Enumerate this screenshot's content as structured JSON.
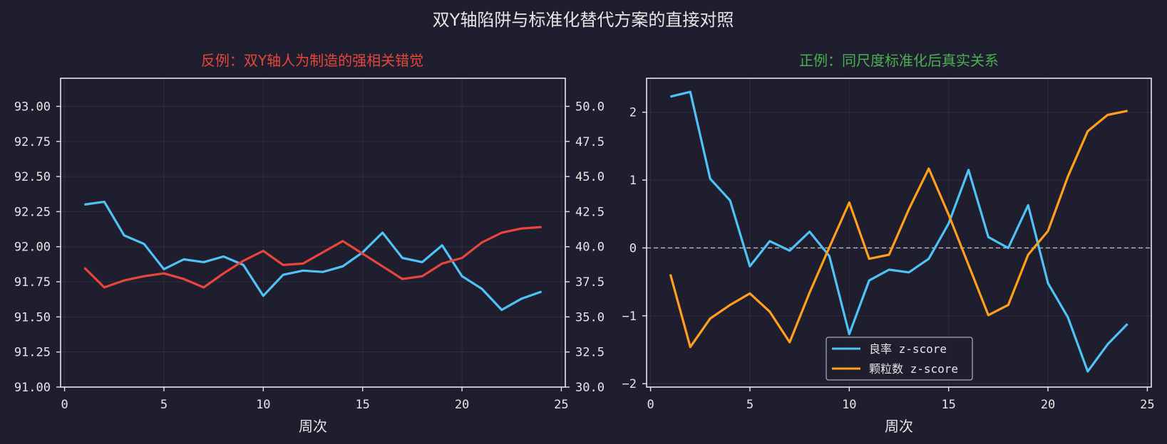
{
  "suptitle": "双Y轴陷阱与标准化替代方案的直接对照",
  "chart_data": [
    {
      "type": "line",
      "title": "反例：双Y轴人为制造的强相关错觉",
      "title_color": "#e8453c",
      "xlabel": "周次",
      "xlim": [
        -0.2,
        25.2
      ],
      "xticks": [
        0,
        5,
        10,
        15,
        20,
        25
      ],
      "x": [
        1,
        2,
        3,
        4,
        5,
        6,
        7,
        8,
        9,
        10,
        11,
        12,
        13,
        14,
        15,
        16,
        17,
        18,
        19,
        20,
        21,
        22,
        23,
        24
      ],
      "ylim_left": [
        91.0,
        93.2
      ],
      "yticks_left": [
        "91.00",
        "91.25",
        "91.50",
        "91.75",
        "92.00",
        "92.25",
        "92.50",
        "92.75",
        "93.00"
      ],
      "ylim_right": [
        30.0,
        52.0
      ],
      "yticks_right": [
        "30.0",
        "32.5",
        "35.0",
        "37.5",
        "40.0",
        "42.5",
        "45.0",
        "47.5",
        "50.0"
      ],
      "grid": true,
      "series": [
        {
          "axis": "left",
          "color": "#4fc3f7",
          "values": [
            92.3,
            92.32,
            92.08,
            92.02,
            91.84,
            91.91,
            91.89,
            91.93,
            91.87,
            91.65,
            91.8,
            91.83,
            91.82,
            91.86,
            91.96,
            92.1,
            91.92,
            91.89,
            92.01,
            91.79,
            91.7,
            91.55,
            91.63,
            91.68
          ]
        },
        {
          "axis": "right",
          "color": "#e8453c",
          "values": [
            38.5,
            37.1,
            37.6,
            37.9,
            38.1,
            37.7,
            37.1,
            38.1,
            39.0,
            39.7,
            38.7,
            38.8,
            39.6,
            40.4,
            39.5,
            38.6,
            37.7,
            37.9,
            38.8,
            39.2,
            40.3,
            41.0,
            41.3,
            41.4
          ]
        }
      ]
    },
    {
      "type": "line",
      "title": "正例：同尺度标准化后真实关系",
      "title_color": "#4caf50",
      "xlabel": "周次",
      "xlim": [
        -0.2,
        25.2
      ],
      "xticks": [
        0,
        5,
        10,
        15,
        20,
        25
      ],
      "x": [
        1,
        2,
        3,
        4,
        5,
        6,
        7,
        8,
        9,
        10,
        11,
        12,
        13,
        14,
        15,
        16,
        17,
        18,
        19,
        20,
        21,
        22,
        23,
        24
      ],
      "ylim": [
        -2.05,
        2.5
      ],
      "yticks": [
        -2,
        -1,
        0,
        1,
        2
      ],
      "ytick_labels": [
        "−2",
        "−1",
        "0",
        "1",
        "2"
      ],
      "reference_line": 0,
      "grid": true,
      "legend_position": "lower-center",
      "series": [
        {
          "name": "良率 z-score",
          "color": "#4fc3f7",
          "values": [
            2.23,
            2.3,
            1.02,
            0.7,
            -0.27,
            0.1,
            -0.04,
            0.24,
            -0.12,
            -1.27,
            -0.48,
            -0.32,
            -0.36,
            -0.16,
            0.36,
            1.15,
            0.16,
            0.0,
            0.63,
            -0.52,
            -1.02,
            -1.82,
            -1.42,
            -1.12
          ]
        },
        {
          "name": "颗粒数 z-score",
          "color": "#ff9f1c",
          "values": [
            -0.39,
            -1.46,
            -1.04,
            -0.84,
            -0.67,
            -0.94,
            -1.39,
            -0.66,
            0.01,
            0.67,
            -0.16,
            -0.1,
            0.57,
            1.17,
            0.49,
            -0.25,
            -0.99,
            -0.84,
            -0.1,
            0.25,
            1.05,
            1.72,
            1.96,
            2.02
          ]
        }
      ]
    }
  ]
}
